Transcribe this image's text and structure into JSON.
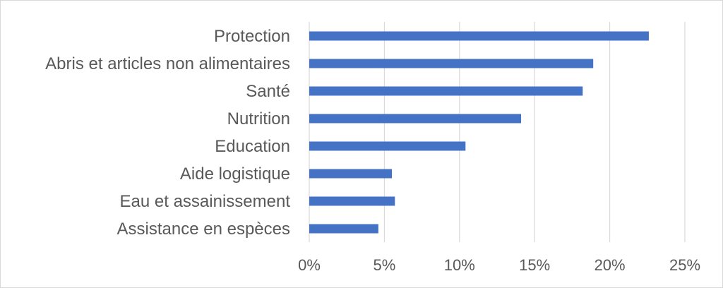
{
  "chart_data": {
    "type": "bar",
    "orientation": "horizontal",
    "categories": [
      "Protection",
      "Abris et articles non alimentaires",
      "Santé",
      "Nutrition",
      "Education",
      "Aide logistique",
      "Eau et assainissement",
      "Assistance en espèces"
    ],
    "values": [
      0.226,
      0.189,
      0.182,
      0.141,
      0.104,
      0.055,
      0.057,
      0.046
    ],
    "x_ticks": [
      0,
      0.05,
      0.1,
      0.15,
      0.2,
      0.25
    ],
    "x_tick_labels": [
      "0%",
      "5%",
      "10%",
      "15%",
      "20%",
      "25%"
    ],
    "xlim": [
      0,
      0.25
    ],
    "title": "",
    "xlabel": "",
    "ylabel": "",
    "grid": "vertical",
    "legend": "none",
    "bar_color": "#4472c4",
    "grid_color": "#d9d9d9"
  }
}
